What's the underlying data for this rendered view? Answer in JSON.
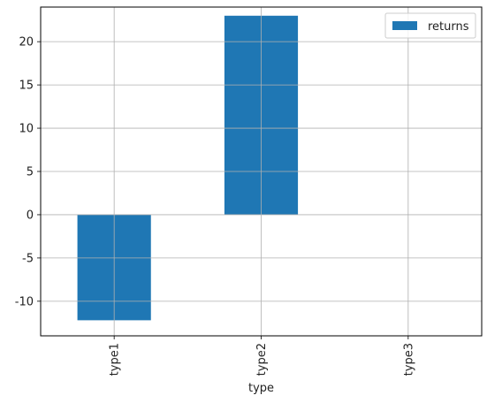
{
  "chart_data": {
    "type": "bar",
    "categories": [
      "type1",
      "type2",
      "type3"
    ],
    "series": [
      {
        "name": "returns",
        "values": [
          -12.2,
          23.0,
          0
        ],
        "color": "#1f77b4"
      }
    ],
    "xlabel": "type",
    "ylabel": "",
    "ylim": [
      -14,
      24
    ],
    "yticks": [
      -10,
      -5,
      0,
      5,
      10,
      15,
      20
    ],
    "ytick_labels": [
      "-10",
      "-5",
      "0",
      "5",
      "10",
      "15",
      "20"
    ],
    "grid": true,
    "legend": {
      "placement": "top-right",
      "entries": [
        "returns"
      ]
    }
  }
}
